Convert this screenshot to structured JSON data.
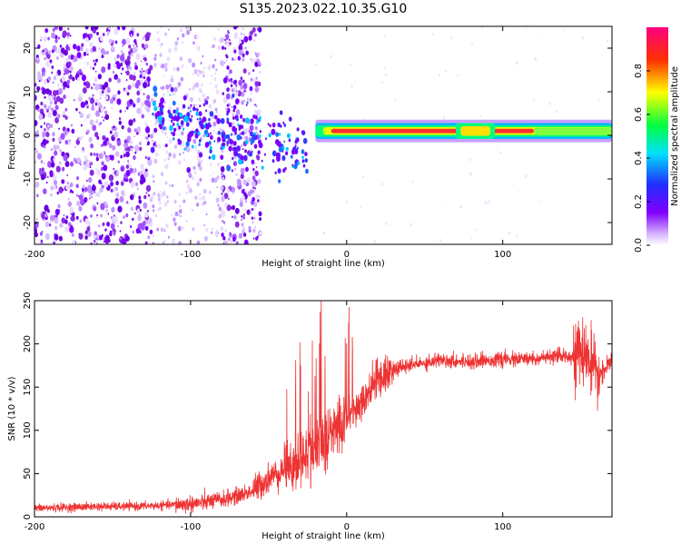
{
  "title": "S135.2023.022.10.35.G10",
  "chart_data": [
    {
      "type": "heatmap",
      "xlabel": "Height of straight line (km)",
      "ylabel": "Frequency (Hz)",
      "xlim": [
        -200,
        170
      ],
      "ylim": [
        -25,
        25
      ],
      "x_ticks": [
        -200,
        -100,
        0,
        100
      ],
      "y_ticks": [
        -20,
        -10,
        0,
        10,
        20
      ],
      "colorbar": {
        "label": "Normalized spectral amplitude",
        "range": [
          0,
          1
        ],
        "ticks": [
          "0.0",
          "0.2",
          "0.4",
          "0.6",
          "0.8"
        ],
        "colormap": "rainbow (white-violet-blue-cyan-green-yellow-red-magenta)"
      },
      "description_features": {
        "signal_band_frequency_hz": 1,
        "signal_band_x_start_km": -20,
        "signal_band_x_end_km": 170,
        "scattered_noise_region_km": [
          -200,
          -55
        ],
        "diagonal_cluster_km": [
          -125,
          -25
        ]
      }
    },
    {
      "type": "line",
      "xlabel": "Height of straight line (km)",
      "ylabel": "SNR (10 * v/v)",
      "xlim": [
        -200,
        170
      ],
      "ylim": [
        0,
        250
      ],
      "x_ticks": [
        -200,
        -100,
        0,
        100
      ],
      "y_ticks": [
        0,
        50,
        100,
        150,
        200,
        250
      ],
      "line_color": "#ee3333",
      "series": [
        {
          "x": [
            -200,
            -180,
            -160,
            -140,
            -120,
            -100,
            -90,
            -80,
            -70,
            -60,
            -50,
            -40,
            -30,
            -20,
            -10,
            0,
            10,
            20,
            30,
            40,
            50,
            60,
            70,
            80,
            90,
            100,
            110,
            120,
            130,
            140,
            150,
            155,
            160,
            170
          ],
          "y": [
            10,
            11,
            12,
            12,
            13,
            15,
            17,
            20,
            24,
            30,
            45,
            55,
            65,
            80,
            95,
            115,
            135,
            160,
            170,
            175,
            178,
            182,
            180,
            180,
            181,
            182,
            182,
            183,
            184,
            186,
            188,
            185,
            160,
            180
          ]
        }
      ]
    }
  ]
}
